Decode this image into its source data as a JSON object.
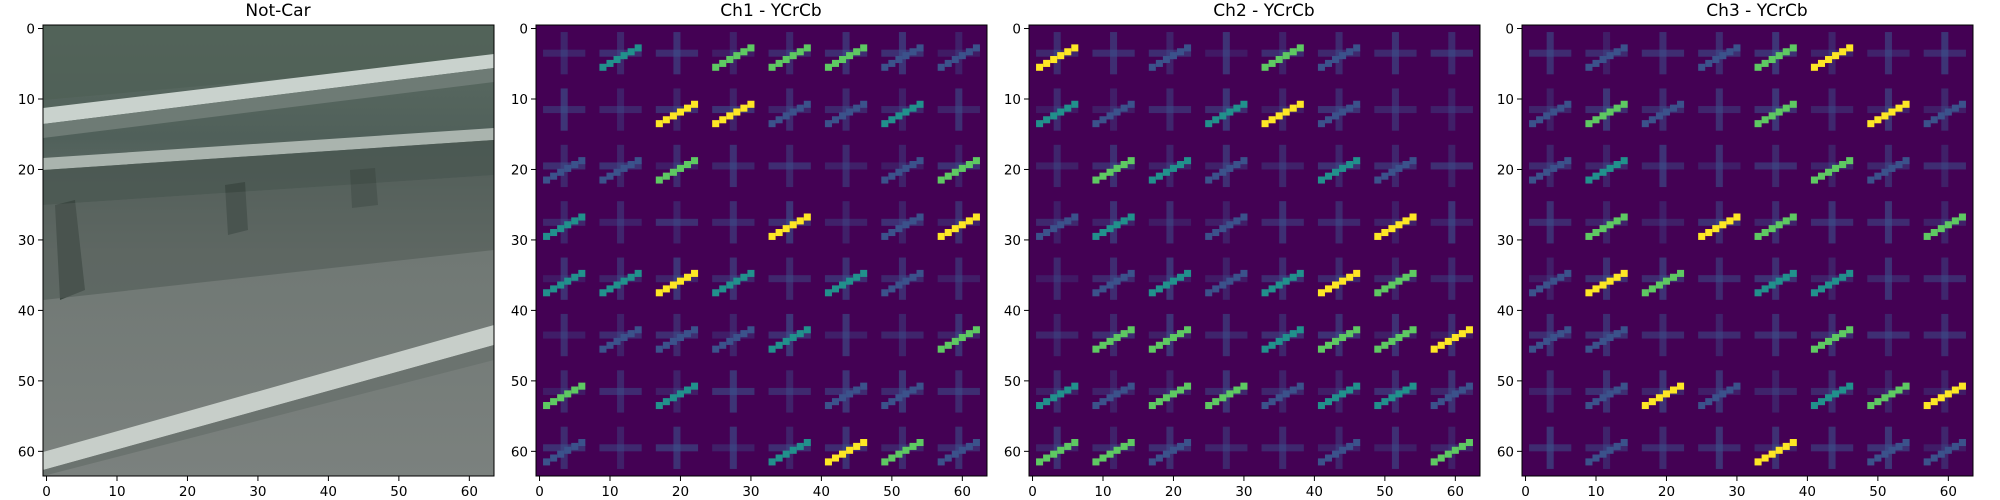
{
  "panels": [
    {
      "id": "image",
      "title": "Not-Car",
      "kind": "image"
    },
    {
      "id": "ch1",
      "title": "Ch1 - YCrCb",
      "kind": "hog"
    },
    {
      "id": "ch2",
      "title": "Ch2 - YCrCb",
      "kind": "hog"
    },
    {
      "id": "ch3",
      "title": "Ch3 - YCrCb",
      "kind": "hog"
    }
  ],
  "chart_data": [
    {
      "type": "heatmap",
      "title": "Not-Car",
      "description": "64x64 RGB image patch (grey road with guardrail)",
      "x_ticks": [
        0,
        10,
        20,
        30,
        40,
        50,
        60
      ],
      "y_ticks": [
        0,
        10,
        20,
        30,
        40,
        50,
        60
      ],
      "xlim": [
        -0.5,
        63.5
      ],
      "ylim": [
        63.5,
        -0.5
      ]
    },
    {
      "type": "heatmap",
      "title": "Ch1 - YCrCb",
      "colormap": "viridis",
      "grid_cells": [
        8,
        8
      ],
      "x_ticks": [
        0,
        10,
        20,
        30,
        40,
        50,
        60
      ],
      "y_ticks": [
        0,
        10,
        20,
        30,
        40,
        50,
        60
      ],
      "xlim": [
        -0.5,
        63.5
      ],
      "ylim": [
        63.5,
        -0.5
      ]
    },
    {
      "type": "heatmap",
      "title": "Ch2 - YCrCb",
      "colormap": "viridis",
      "grid_cells": [
        8,
        8
      ],
      "x_ticks": [
        0,
        10,
        20,
        30,
        40,
        50,
        60
      ],
      "y_ticks": [
        0,
        10,
        20,
        30,
        40,
        50,
        60
      ],
      "xlim": [
        -0.5,
        63.5
      ],
      "ylim": [
        63.5,
        -0.5
      ]
    },
    {
      "type": "heatmap",
      "title": "Ch3 - YCrCb",
      "colormap": "viridis",
      "grid_cells": [
        8,
        8
      ],
      "x_ticks": [
        0,
        10,
        20,
        30,
        40,
        50,
        60
      ],
      "y_ticks": [
        0,
        10,
        20,
        30,
        40,
        50,
        60
      ],
      "xlim": [
        -0.5,
        63.5
      ],
      "ylim": [
        63.5,
        -0.5
      ]
    }
  ],
  "colors": {
    "background": "#440154",
    "low": "#3b528b",
    "mid": "#21918c",
    "high": "#5ec962",
    "max": "#fde725"
  }
}
